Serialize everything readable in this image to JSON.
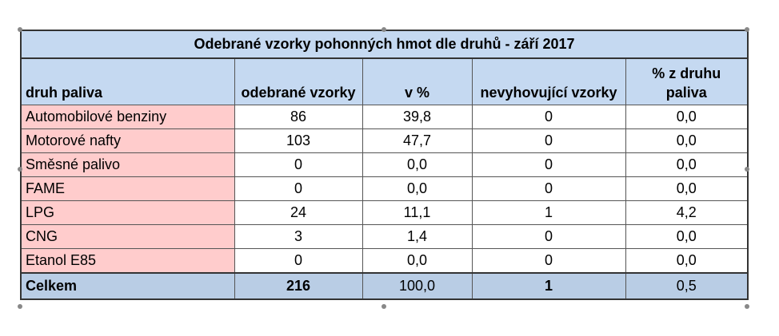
{
  "table": {
    "title": "Odebrané vzorky pohonných hmot dle druhů - září 2017",
    "headers": {
      "fuel_type": "druh paliva",
      "samples": "odebrané vzorky",
      "percent": "v %",
      "noncompliant": "nevyhovující vzorky",
      "percent_of_type": "% z druhu paliva"
    },
    "rows": [
      {
        "fuel": "Automobilové benziny",
        "samples": "86",
        "percent": "39,8",
        "noncompliant": "0",
        "percent_of_type": "0,0"
      },
      {
        "fuel": "Motorové nafty",
        "samples": "103",
        "percent": "47,7",
        "noncompliant": "0",
        "percent_of_type": "0,0"
      },
      {
        "fuel": "Směsné palivo",
        "samples": "0",
        "percent": "0,0",
        "noncompliant": "0",
        "percent_of_type": "0,0"
      },
      {
        "fuel": "FAME",
        "samples": "0",
        "percent": "0,0",
        "noncompliant": "0",
        "percent_of_type": "0,0"
      },
      {
        "fuel": "LPG",
        "samples": "24",
        "percent": "11,1",
        "noncompliant": "1",
        "percent_of_type": "4,2"
      },
      {
        "fuel": "CNG",
        "samples": "3",
        "percent": "1,4",
        "noncompliant": "0",
        "percent_of_type": "0,0"
      },
      {
        "fuel": "Etanol E85",
        "samples": "0",
        "percent": "0,0",
        "noncompliant": "0",
        "percent_of_type": "0,0"
      }
    ],
    "total": {
      "label": "Celkem",
      "samples": "216",
      "percent": "100,0",
      "noncompliant": "1",
      "percent_of_type": "0,5"
    }
  }
}
